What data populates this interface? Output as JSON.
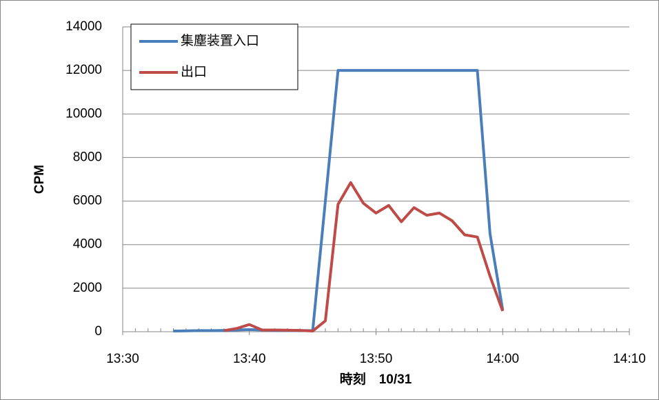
{
  "chart_data": {
    "type": "line",
    "x": [
      "13:34",
      "13:35",
      "13:36",
      "13:37",
      "13:38",
      "13:39",
      "13:40",
      "13:41",
      "13:42",
      "13:43",
      "13:44",
      "13:45",
      "13:46",
      "13:47",
      "13:48",
      "13:49",
      "13:50",
      "13:51",
      "13:52",
      "13:53",
      "13:54",
      "13:55",
      "13:56",
      "13:57",
      "13:58",
      "13:59",
      "14:00"
    ],
    "series": [
      {
        "name": "集塵装置入口",
        "color": "#4a7ebb",
        "values": [
          30,
          40,
          50,
          50,
          60,
          80,
          100,
          80,
          60,
          60,
          50,
          50,
          6000,
          12000,
          12000,
          12000,
          12000,
          12000,
          12000,
          12000,
          12000,
          12000,
          12000,
          12000,
          12000,
          4500,
          1000
        ]
      },
      {
        "name": "出口",
        "color": "#be4b48",
        "values": [
          null,
          null,
          null,
          null,
          50,
          150,
          330,
          80,
          80,
          70,
          60,
          30,
          500,
          5850,
          6850,
          5900,
          5450,
          5800,
          5050,
          5700,
          5350,
          5450,
          5100,
          4450,
          4350,
          2550,
          950
        ]
      }
    ],
    "xlim": [
      "13:30",
      "14:10"
    ],
    "xticks": [
      "13:30",
      "13:40",
      "13:50",
      "14:00",
      "14:10"
    ],
    "ylim": [
      0,
      14000
    ],
    "yticks": [
      0,
      2000,
      4000,
      6000,
      8000,
      10000,
      12000,
      14000
    ],
    "xlabel": "時刻　10/31",
    "ylabel": "CPM",
    "grid": true,
    "legend": "top-left"
  }
}
